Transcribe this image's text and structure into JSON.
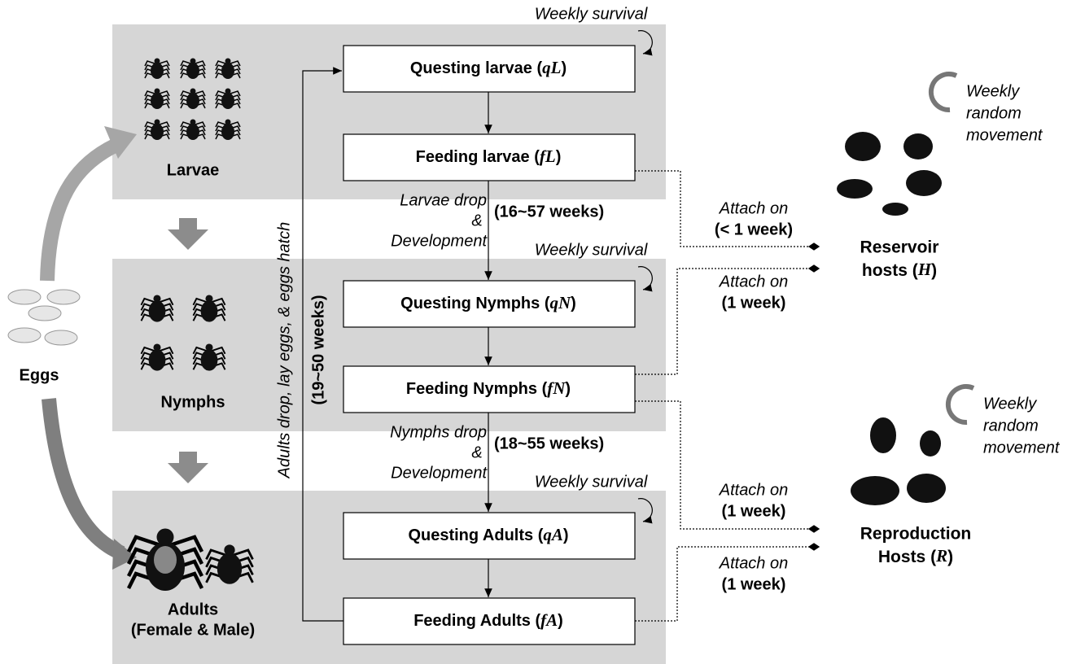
{
  "stages": [
    {
      "label": "Larvae"
    },
    {
      "label": "Nymphs"
    },
    {
      "label": "Adults",
      "sublabel": "(Female & Male)"
    }
  ],
  "eggs": "Eggs",
  "boxes": [
    {
      "prefix": "Questing larvae (",
      "symbol": "qL",
      "suffix": ")"
    },
    {
      "prefix": "Feeding larvae (",
      "symbol": "fL",
      "suffix": ")"
    },
    {
      "prefix": "Questing Nymphs (",
      "symbol": "qN",
      "suffix": ")"
    },
    {
      "prefix": "Feeding Nymphs (",
      "symbol": "fN",
      "suffix": ")"
    },
    {
      "prefix": "Questing Adults (",
      "symbol": "qA",
      "suffix": ")"
    },
    {
      "prefix": "Feeding Adults (",
      "symbol": "fA",
      "suffix": ")"
    }
  ],
  "survival": [
    "Weekly survival",
    "Weekly survival",
    "Weekly survival"
  ],
  "transitions": [
    {
      "lines": [
        "Larvae drop",
        "&",
        "Development"
      ],
      "duration": "(16~57 weeks)"
    },
    {
      "lines": [
        "Nymphs drop",
        "&",
        "Development"
      ],
      "duration": "(18~55 weeks)"
    }
  ],
  "reproduction": {
    "label": "Adults drop, lay eggs, & eggs hatch",
    "duration": "(19~50 weeks)"
  },
  "attachments": [
    {
      "label": "Attach on",
      "duration": "(< 1 week)"
    },
    {
      "label": "Attach on",
      "duration": "(1 week)"
    },
    {
      "label": "Attach on",
      "duration": "(1 week)"
    },
    {
      "label": "Attach on",
      "duration": "(1 week)"
    }
  ],
  "hosts": [
    {
      "line1": "Reservoir",
      "prefix": "hosts (",
      "symbol": "H",
      "suffix": ")",
      "movement": [
        "Weekly",
        "random",
        "movement"
      ]
    },
    {
      "line1": "Reproduction",
      "prefix": "Hosts (",
      "symbol": "R",
      "suffix": ")",
      "movement": [
        "Weekly",
        "random",
        "movement"
      ]
    }
  ]
}
